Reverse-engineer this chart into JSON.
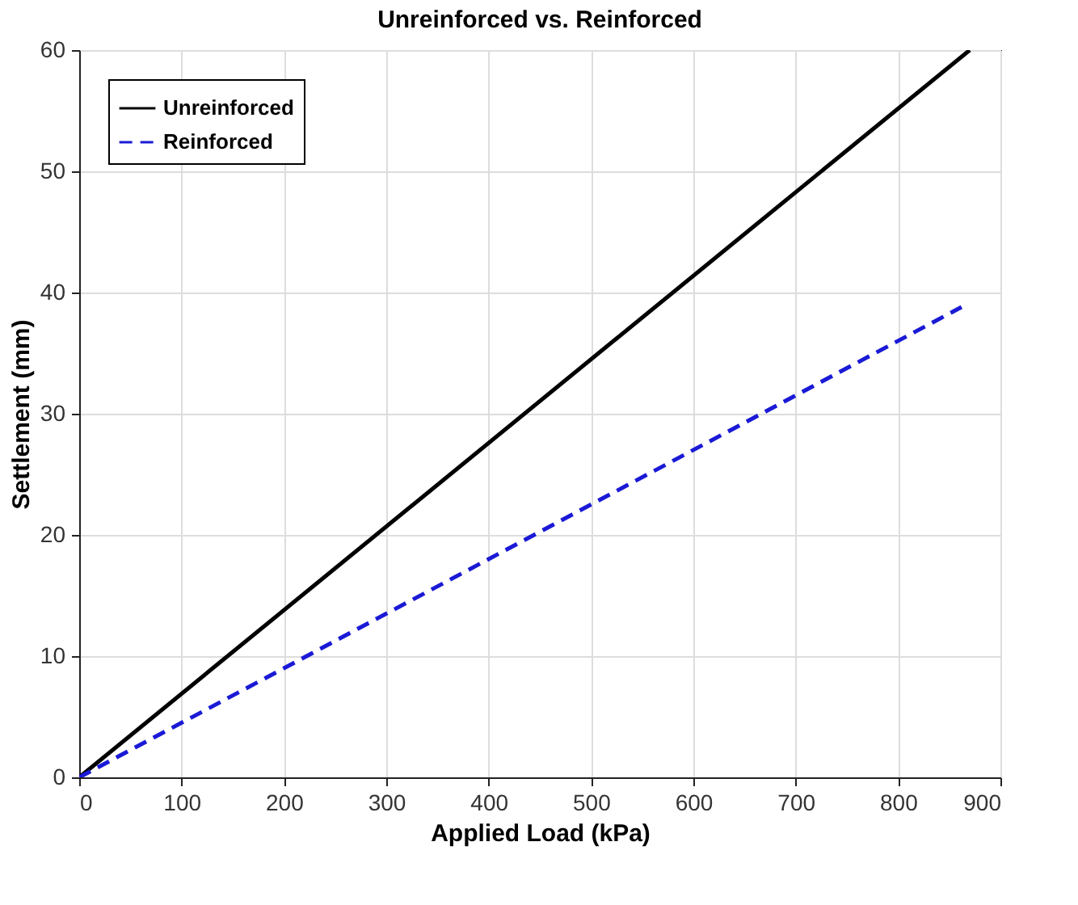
{
  "chart_data": {
    "type": "line",
    "title": "Unreinforced vs. Reinforced",
    "xlabel": "Applied Load (kPa)",
    "ylabel": "Settlement (mm)",
    "series": [
      {
        "name": "Unreinforced",
        "color": "#000000",
        "line_style": "solid",
        "x": [
          0,
          870
        ],
        "values": [
          0,
          60
        ]
      },
      {
        "name": "Reinforced",
        "color": "#1a1ad6",
        "line_style": "dashed",
        "x": [
          0,
          862
        ],
        "values": [
          0,
          38.8
        ]
      }
    ],
    "xlim": [
      0,
      900
    ],
    "xticks": [
      0,
      100,
      200,
      300,
      400,
      500,
      600,
      700,
      800,
      900
    ],
    "ylim": [
      0,
      60
    ],
    "yticks": [
      0,
      10,
      20,
      30,
      40,
      50,
      60
    ],
    "grid": true,
    "legend": "top left",
    "marker": "none"
  }
}
